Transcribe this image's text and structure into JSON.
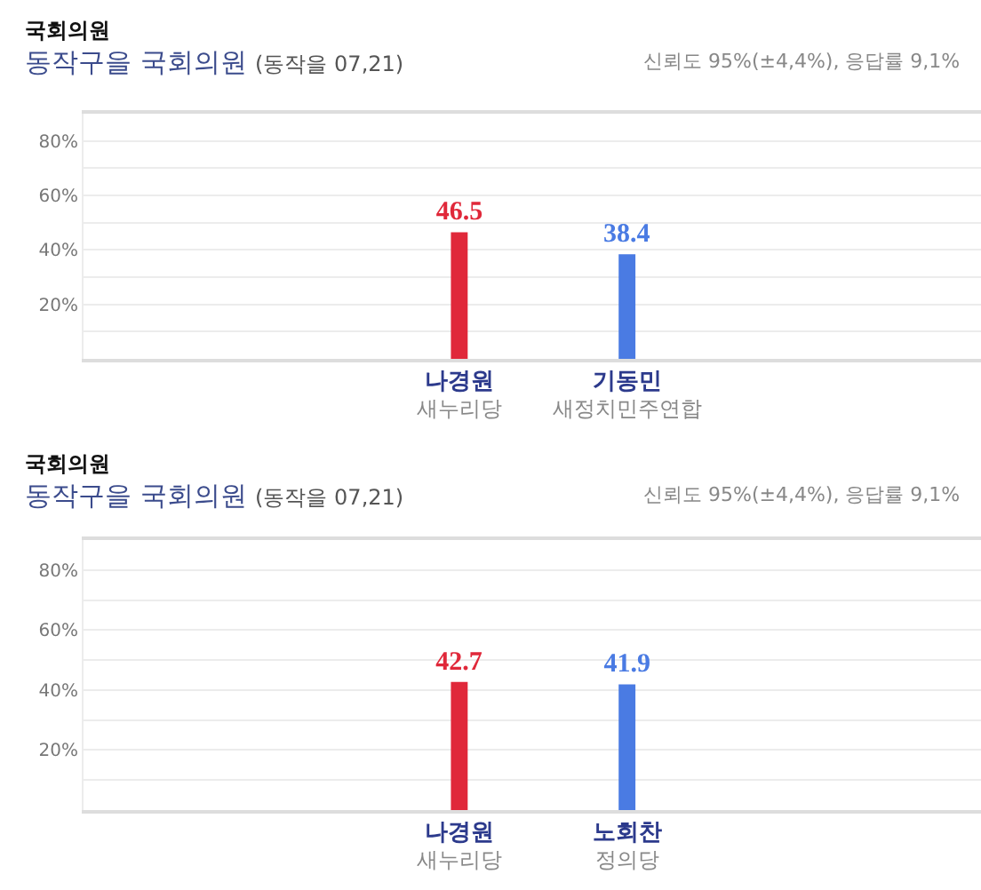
{
  "chart_data": [
    {
      "type": "bar",
      "title": "국회의원",
      "subtitle": "동작구을 국회의원",
      "annotations": [
        "(동작을 07,21)",
        "신뢰도 95%(±4,4%), 응답률 9,1%"
      ],
      "categories": [
        "나경원\n새누리당",
        "기동민\n새정치민주연합"
      ],
      "values": [
        46.5,
        38.4
      ],
      "colors": [
        "#e0283a",
        "#4a7be3"
      ],
      "ylim": [
        0,
        90
      ],
      "yticks": [
        {
          "value": 20,
          "label": "20%"
        },
        {
          "value": 40,
          "label": "40%"
        },
        {
          "value": 60,
          "label": "60%"
        },
        {
          "value": 80,
          "label": "80%"
        }
      ],
      "grid": "y",
      "data_labels": true
    },
    {
      "type": "bar",
      "title": "국회의원",
      "subtitle": "동작구을 국회의원",
      "annotations": [
        "(동작을 07,21)",
        "신뢰도 95%(±4,4%), 응답률 9,1%"
      ],
      "categories": [
        "나경원\n새누리당",
        "노회찬\n정의당"
      ],
      "values": [
        42.7,
        41.9
      ],
      "colors": [
        "#e0283a",
        "#4a7be3"
      ],
      "ylim": [
        0,
        90
      ],
      "yticks": [
        {
          "value": 20,
          "label": "20%"
        },
        {
          "value": 40,
          "label": "40%"
        },
        {
          "value": 60,
          "label": "60%"
        },
        {
          "value": 80,
          "label": "80%"
        }
      ],
      "grid": "y",
      "data_labels": true
    }
  ]
}
